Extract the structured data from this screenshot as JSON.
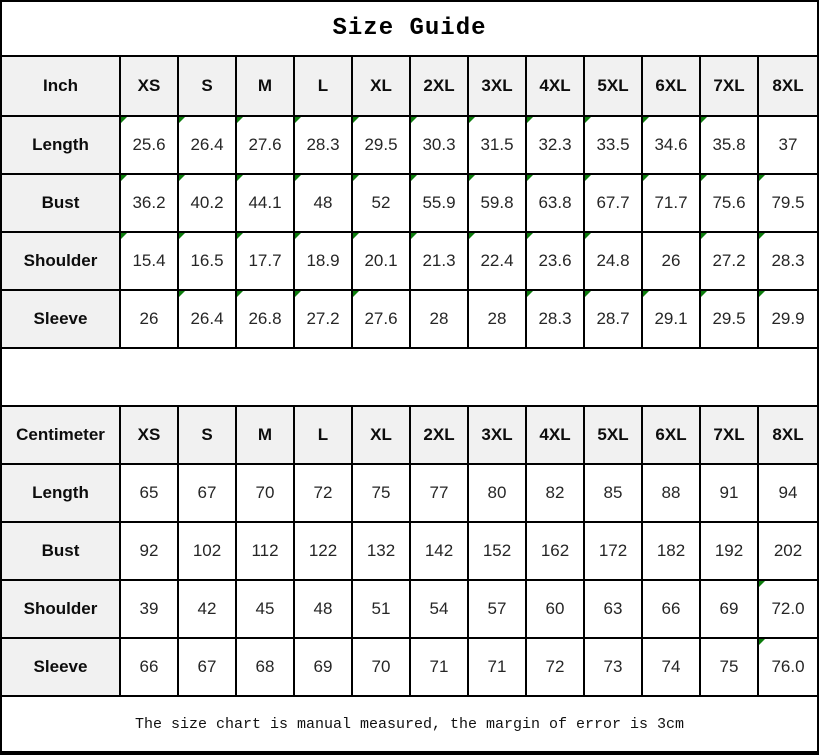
{
  "title": "Size Guide",
  "footer_note": "The size chart is manual measured, the margin of error is 3cm",
  "sizes": [
    "XS",
    "S",
    "M",
    "L",
    "XL",
    "2XL",
    "3XL",
    "4XL",
    "5XL",
    "6XL",
    "7XL",
    "8XL"
  ],
  "colors": {
    "header_bg": "#f1f1f1",
    "border": "#000000",
    "flag_green": "#0c7c0c",
    "data_text": "#262626"
  },
  "tables": [
    {
      "unit_label": "Inch",
      "rows": [
        {
          "label": "Length",
          "values": [
            "25.6",
            "26.4",
            "27.6",
            "28.3",
            "29.5",
            "30.3",
            "31.5",
            "32.3",
            "33.5",
            "34.6",
            "35.8",
            "37"
          ],
          "flags": [
            1,
            1,
            1,
            1,
            1,
            1,
            1,
            1,
            1,
            1,
            1,
            0
          ]
        },
        {
          "label": "Bust",
          "values": [
            "36.2",
            "40.2",
            "44.1",
            "48",
            "52",
            "55.9",
            "59.8",
            "63.8",
            "67.7",
            "71.7",
            "75.6",
            "79.5"
          ],
          "flags": [
            1,
            1,
            1,
            1,
            1,
            1,
            1,
            1,
            1,
            1,
            1,
            1
          ]
        },
        {
          "label": "Shoulder",
          "values": [
            "15.4",
            "16.5",
            "17.7",
            "18.9",
            "20.1",
            "21.3",
            "22.4",
            "23.6",
            "24.8",
            "26",
            "27.2",
            "28.3"
          ],
          "flags": [
            1,
            1,
            1,
            1,
            1,
            1,
            1,
            1,
            1,
            0,
            1,
            1
          ]
        },
        {
          "label": "Sleeve",
          "values": [
            "26",
            "26.4",
            "26.8",
            "27.2",
            "27.6",
            "28",
            "28",
            "28.3",
            "28.7",
            "29.1",
            "29.5",
            "29.9"
          ],
          "flags": [
            0,
            1,
            1,
            1,
            1,
            0,
            0,
            1,
            1,
            1,
            1,
            1
          ]
        }
      ]
    },
    {
      "unit_label": "Centimeter",
      "rows": [
        {
          "label": "Length",
          "values": [
            "65",
            "67",
            "70",
            "72",
            "75",
            "77",
            "80",
            "82",
            "85",
            "88",
            "91",
            "94"
          ],
          "flags": [
            0,
            0,
            0,
            0,
            0,
            0,
            0,
            0,
            0,
            0,
            0,
            0
          ]
        },
        {
          "label": "Bust",
          "values": [
            "92",
            "102",
            "112",
            "122",
            "132",
            "142",
            "152",
            "162",
            "172",
            "182",
            "192",
            "202"
          ],
          "flags": [
            0,
            0,
            0,
            0,
            0,
            0,
            0,
            0,
            0,
            0,
            0,
            0
          ]
        },
        {
          "label": "Shoulder",
          "values": [
            "39",
            "42",
            "45",
            "48",
            "51",
            "54",
            "57",
            "60",
            "63",
            "66",
            "69",
            "72.0"
          ],
          "flags": [
            0,
            0,
            0,
            0,
            0,
            0,
            0,
            0,
            0,
            0,
            0,
            1
          ]
        },
        {
          "label": "Sleeve",
          "values": [
            "66",
            "67",
            "68",
            "69",
            "70",
            "71",
            "71",
            "72",
            "73",
            "74",
            "75",
            "76.0"
          ],
          "flags": [
            0,
            0,
            0,
            0,
            0,
            0,
            0,
            0,
            0,
            0,
            0,
            1
          ]
        }
      ]
    }
  ]
}
